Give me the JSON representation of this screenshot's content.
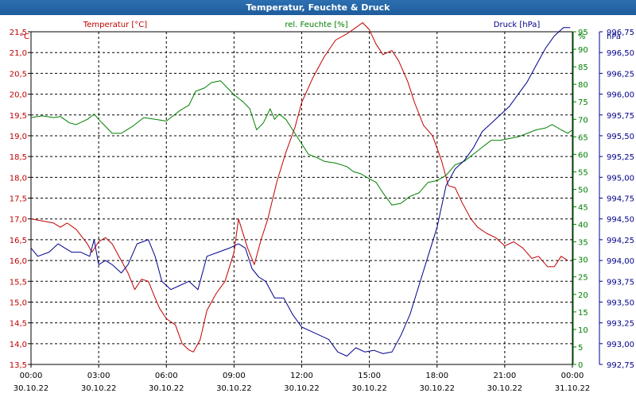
{
  "window": {
    "title": "Temperatur, Feuchte & Druck"
  },
  "chart_data": {
    "type": "line",
    "title": "Temperatur, Feuchte & Druck",
    "axes": {
      "temperature": {
        "label": "Temperatur [°C]",
        "unit_label": "°C",
        "min": 13.5,
        "max": 21.5,
        "ticks": [
          "13,5",
          "14,0",
          "14,5",
          "15,0",
          "15,5",
          "16,0",
          "16,5",
          "17,0",
          "17,5",
          "18,0",
          "18,5",
          "19,0",
          "19,5",
          "20,0",
          "20,5",
          "21,0",
          "21,5"
        ],
        "color": "#c00000"
      },
      "humidity": {
        "label": "rel. Feuchte [%]",
        "unit_label": "%",
        "min": 0,
        "max": 95,
        "ticks": [
          "0",
          "5",
          "10",
          "15",
          "20",
          "25",
          "30",
          "35",
          "40",
          "45",
          "50",
          "55",
          "60",
          "65",
          "70",
          "75",
          "80",
          "85",
          "90",
          "95"
        ],
        "color": "#008000"
      },
      "pressure": {
        "label": "Druck [hPa]",
        "unit_label": "hPa",
        "min": 992.75,
        "max": 996.75,
        "ticks": [
          "992,75",
          "993,00",
          "993,25",
          "993,50",
          "993,75",
          "994,00",
          "994,25",
          "994,50",
          "994,75",
          "995,00",
          "995,25",
          "995,50",
          "995,75",
          "996,00",
          "996,25",
          "996,50",
          "996,75"
        ],
        "color": "#00008b"
      }
    },
    "x_ticks": [
      {
        "time": "00:00",
        "date": "30.10.22"
      },
      {
        "time": "03:00",
        "date": "30.10.22"
      },
      {
        "time": "06:00",
        "date": "30.10.22"
      },
      {
        "time": "09:00",
        "date": "30.10.22"
      },
      {
        "time": "12:00",
        "date": "30.10.22"
      },
      {
        "time": "15:00",
        "date": "30.10.22"
      },
      {
        "time": "18:00",
        "date": "30.10.22"
      },
      {
        "time": "21:00",
        "date": "30.10.22"
      },
      {
        "time": "00:00",
        "date": "31.10.22"
      }
    ],
    "x_range_hours": [
      0,
      24
    ],
    "grid": true,
    "series": [
      {
        "name": "Temperatur [°C]",
        "axis": "temperature",
        "color": "#c00000",
        "points": [
          [
            0,
            17.0
          ],
          [
            0.5,
            16.95
          ],
          [
            1,
            16.9
          ],
          [
            1.3,
            16.8
          ],
          [
            1.6,
            16.9
          ],
          [
            2,
            16.75
          ],
          [
            2.5,
            16.4
          ],
          [
            2.7,
            16.2
          ],
          [
            3,
            16.45
          ],
          [
            3.3,
            16.55
          ],
          [
            3.6,
            16.4
          ],
          [
            4,
            16.0
          ],
          [
            4.3,
            15.7
          ],
          [
            4.6,
            15.3
          ],
          [
            4.9,
            15.55
          ],
          [
            5.2,
            15.5
          ],
          [
            5.5,
            15.1
          ],
          [
            5.7,
            14.85
          ],
          [
            6,
            14.6
          ],
          [
            6.4,
            14.45
          ],
          [
            6.7,
            14.0
          ],
          [
            7,
            13.85
          ],
          [
            7.2,
            13.8
          ],
          [
            7.5,
            14.1
          ],
          [
            7.8,
            14.8
          ],
          [
            8.2,
            15.2
          ],
          [
            8.6,
            15.5
          ],
          [
            9,
            16.2
          ],
          [
            9.2,
            17.0
          ],
          [
            9.6,
            16.3
          ],
          [
            9.9,
            15.9
          ],
          [
            10.2,
            16.5
          ],
          [
            10.5,
            17.0
          ],
          [
            10.9,
            17.9
          ],
          [
            11.3,
            18.6
          ],
          [
            11.7,
            19.2
          ],
          [
            12,
            19.8
          ],
          [
            12.5,
            20.4
          ],
          [
            13,
            20.9
          ],
          [
            13.5,
            21.3
          ],
          [
            14,
            21.45
          ],
          [
            14.4,
            21.6
          ],
          [
            14.7,
            21.72
          ],
          [
            15,
            21.55
          ],
          [
            15.3,
            21.2
          ],
          [
            15.6,
            20.95
          ],
          [
            16,
            21.05
          ],
          [
            16.3,
            20.8
          ],
          [
            16.7,
            20.3
          ],
          [
            17,
            19.8
          ],
          [
            17.4,
            19.25
          ],
          [
            17.8,
            19.0
          ],
          [
            18.2,
            18.4
          ],
          [
            18.5,
            17.8
          ],
          [
            18.8,
            17.75
          ],
          [
            19.1,
            17.4
          ],
          [
            19.5,
            17.0
          ],
          [
            19.8,
            16.8
          ],
          [
            20.2,
            16.65
          ],
          [
            20.6,
            16.55
          ],
          [
            21,
            16.35
          ],
          [
            21.4,
            16.45
          ],
          [
            21.8,
            16.3
          ],
          [
            22.2,
            16.05
          ],
          [
            22.5,
            16.1
          ],
          [
            22.9,
            15.85
          ],
          [
            23.2,
            15.85
          ],
          [
            23.5,
            16.1
          ],
          [
            23.8,
            16.0
          ]
        ]
      },
      {
        "name": "rel. Feuchte [%]",
        "axis": "humidity",
        "color": "#008000",
        "points": [
          [
            0,
            70.5
          ],
          [
            0.5,
            71
          ],
          [
            1,
            70.5
          ],
          [
            1.3,
            70.8
          ],
          [
            1.7,
            69
          ],
          [
            2,
            68.5
          ],
          [
            2.5,
            70
          ],
          [
            2.8,
            71.5
          ],
          [
            3,
            70
          ],
          [
            3.3,
            68
          ],
          [
            3.6,
            66
          ],
          [
            4,
            66
          ],
          [
            4.5,
            68
          ],
          [
            5,
            70.5
          ],
          [
            5.5,
            70
          ],
          [
            6,
            69.5
          ],
          [
            6.3,
            71
          ],
          [
            6.6,
            72.5
          ],
          [
            7,
            74
          ],
          [
            7.3,
            78
          ],
          [
            7.7,
            79
          ],
          [
            8,
            80.5
          ],
          [
            8.4,
            81
          ],
          [
            8.7,
            79
          ],
          [
            9,
            77
          ],
          [
            9.4,
            75
          ],
          [
            9.7,
            73
          ],
          [
            10,
            67
          ],
          [
            10.3,
            69
          ],
          [
            10.6,
            73
          ],
          [
            10.8,
            70
          ],
          [
            11,
            71.5
          ],
          [
            11.3,
            70
          ],
          [
            11.6,
            67
          ],
          [
            12,
            63
          ],
          [
            12.3,
            60
          ],
          [
            12.7,
            59
          ],
          [
            13,
            58
          ],
          [
            13.5,
            57.5
          ],
          [
            14,
            56.5
          ],
          [
            14.3,
            55
          ],
          [
            14.6,
            54.5
          ],
          [
            15,
            53
          ],
          [
            15.3,
            52
          ],
          [
            15.6,
            49
          ],
          [
            16,
            45.5
          ],
          [
            16.4,
            46
          ],
          [
            16.8,
            48
          ],
          [
            17.2,
            49
          ],
          [
            17.6,
            52
          ],
          [
            18,
            52.5
          ],
          [
            18.4,
            54
          ],
          [
            18.8,
            57
          ],
          [
            19.2,
            58
          ],
          [
            19.6,
            60
          ],
          [
            20,
            62
          ],
          [
            20.4,
            64
          ],
          [
            20.8,
            64
          ],
          [
            21.2,
            64.5
          ],
          [
            21.6,
            65
          ],
          [
            22,
            66
          ],
          [
            22.4,
            67
          ],
          [
            22.8,
            67.5
          ],
          [
            23.1,
            68.5
          ],
          [
            23.5,
            67
          ],
          [
            23.8,
            66
          ],
          [
            24,
            67
          ]
        ]
      },
      {
        "name": "Druck [hPa]",
        "axis": "pressure",
        "color": "#00008b",
        "points": [
          [
            0,
            994.15
          ],
          [
            0.3,
            994.05
          ],
          [
            0.8,
            994.1
          ],
          [
            1.2,
            994.2
          ],
          [
            1.5,
            994.15
          ],
          [
            1.8,
            994.1
          ],
          [
            2.2,
            994.1
          ],
          [
            2.6,
            994.05
          ],
          [
            2.8,
            994.25
          ],
          [
            3,
            993.95
          ],
          [
            3.3,
            994.0
          ],
          [
            3.6,
            993.95
          ],
          [
            4,
            993.85
          ],
          [
            4.3,
            993.95
          ],
          [
            4.7,
            994.2
          ],
          [
            5.2,
            994.25
          ],
          [
            5.5,
            994.05
          ],
          [
            5.8,
            993.75
          ],
          [
            6.2,
            993.65
          ],
          [
            6.6,
            993.7
          ],
          [
            7,
            993.75
          ],
          [
            7.4,
            993.65
          ],
          [
            7.8,
            994.05
          ],
          [
            8.3,
            994.1
          ],
          [
            8.8,
            994.15
          ],
          [
            9.2,
            994.2
          ],
          [
            9.5,
            994.15
          ],
          [
            9.8,
            993.9
          ],
          [
            10.1,
            993.8
          ],
          [
            10.4,
            993.75
          ],
          [
            10.8,
            993.55
          ],
          [
            11.2,
            993.55
          ],
          [
            11.6,
            993.35
          ],
          [
            12,
            993.2
          ],
          [
            12.4,
            993.15
          ],
          [
            12.8,
            993.1
          ],
          [
            13.2,
            993.05
          ],
          [
            13.6,
            992.9
          ],
          [
            14,
            992.85
          ],
          [
            14.4,
            992.95
          ],
          [
            14.8,
            992.9
          ],
          [
            15.2,
            992.92
          ],
          [
            15.6,
            992.88
          ],
          [
            16,
            992.9
          ],
          [
            16.4,
            993.1
          ],
          [
            16.8,
            993.35
          ],
          [
            17.2,
            993.7
          ],
          [
            17.6,
            994.05
          ],
          [
            18,
            994.4
          ],
          [
            18.4,
            994.9
          ],
          [
            18.8,
            995.1
          ],
          [
            19.2,
            995.2
          ],
          [
            19.6,
            995.35
          ],
          [
            20,
            995.55
          ],
          [
            20.4,
            995.65
          ],
          [
            20.8,
            995.75
          ],
          [
            21.2,
            995.85
          ],
          [
            21.6,
            996.0
          ],
          [
            22,
            996.15
          ],
          [
            22.4,
            996.35
          ],
          [
            22.8,
            996.55
          ],
          [
            23.2,
            996.7
          ],
          [
            23.6,
            996.8
          ],
          [
            23.9,
            996.8
          ]
        ]
      }
    ]
  }
}
